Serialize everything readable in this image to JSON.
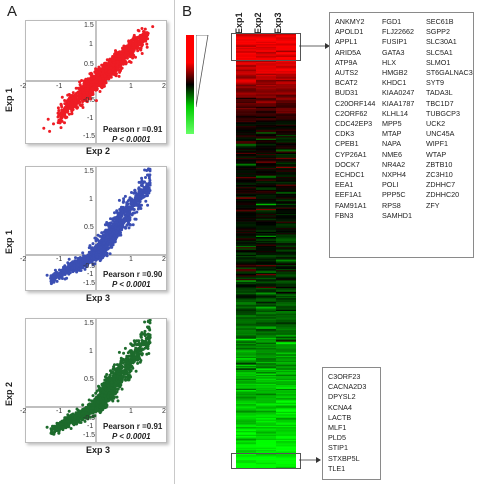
{
  "panels": {
    "a": "A",
    "b": "B"
  },
  "chart_data": [
    {
      "type": "scatter",
      "xlabel": "Exp 2",
      "ylabel": "Exp 1",
      "x_ticks": [
        "-2",
        "-1",
        "1",
        "2"
      ],
      "y_ticks": [
        "1.5",
        "1",
        "0.5",
        "-0.5",
        "-1",
        "-1.5"
      ],
      "xlim": [
        -2,
        2
      ],
      "ylim": [
        -1.5,
        1.5
      ],
      "color": "#ee1c24",
      "stat_r": "Pearson r =0.91",
      "stat_p": "P < 0.0001",
      "slope": 0.78,
      "spread_x": [
        -1.1,
        1.5
      ]
    },
    {
      "type": "scatter",
      "xlabel": "Exp 3",
      "ylabel": "Exp 1",
      "x_ticks": [
        "-2",
        "-1",
        "1",
        "2"
      ],
      "y_ticks": [
        "1.5",
        "1",
        "0.5",
        "-0.5",
        "-1",
        "-1.5"
      ],
      "xlim": [
        -2,
        2
      ],
      "ylim": [
        -1.5,
        1.5
      ],
      "color": "#3b4fb3",
      "stat_r": "Pearson r =0.90",
      "stat_p": "P < 0.0001",
      "slope": 0.8,
      "spread_x": [
        -1.3,
        1.55
      ]
    },
    {
      "type": "scatter",
      "xlabel": "Exp 3",
      "ylabel": "Exp 2",
      "x_ticks": [
        "-2",
        "-1",
        "1",
        "2"
      ],
      "y_ticks": [
        "1.5",
        "1",
        "0.5",
        "-0.5",
        "-1",
        "-1.5"
      ],
      "xlim": [
        -2,
        2
      ],
      "ylim": [
        -1.5,
        1.5
      ],
      "color": "#1d6b2c",
      "stat_r": "Pearson r =0.91",
      "stat_p": "P < 0.0001",
      "slope": 0.8,
      "spread_x": [
        -1.3,
        1.55
      ]
    },
    {
      "type": "heatmap",
      "columns": [
        "Exp1",
        "Exp2",
        "Exp3"
      ],
      "colors": {
        "high": "#ff0000",
        "mid": "#000000",
        "low": "#33ff33"
      }
    }
  ],
  "upregulated_genes": {
    "col1": [
      "ANKMY2",
      "APOLD1",
      "APPL1",
      "ARID5A",
      "ATP9A",
      "AUTS2",
      "BCAT2",
      "BUD31",
      "C20ORF144",
      "C2ORF62",
      "CDC42EP3",
      "CDK3",
      "CPEB1",
      "CYP26A1",
      "DOCK7",
      "ECHDC1",
      "EEA1",
      "EEF1A1",
      "FAM91A1",
      "FBN3"
    ],
    "col2": [
      "FGD1",
      "FLJ22662",
      "FUSIP1",
      "GATA3",
      "HLX",
      "HMGB2",
      "KHDC1",
      "KIAA0247",
      "KIAA1787",
      "KLHL14",
      "MPP5",
      "MTAP",
      "NAPA",
      "NME6",
      "NR4A2",
      "NXPH4",
      "POLI",
      "PPP5C",
      "RPS8",
      "SAMHD1"
    ],
    "col3": [
      "SEC61B",
      "SGPP2",
      "SLC30A1",
      "SLC5A1",
      "SLMO1",
      "ST6GALNAC3",
      "SYT9",
      "TADA3L",
      "TBC1D7",
      "TUBGCP3",
      "UCK2",
      "UNC45A",
      "WIPF1",
      "WTAP",
      "ZBTB10",
      "ZC3H10",
      "ZDHHC7",
      "ZDHHC20",
      "ZFY"
    ]
  },
  "downregulated_genes": [
    "C3ORF23",
    "CACNA2D3",
    "DPYSL2",
    "KCNA4",
    "LACTB",
    "MLF1",
    "PLD5",
    "STIP1",
    "STXBP5L",
    "TLE1"
  ]
}
